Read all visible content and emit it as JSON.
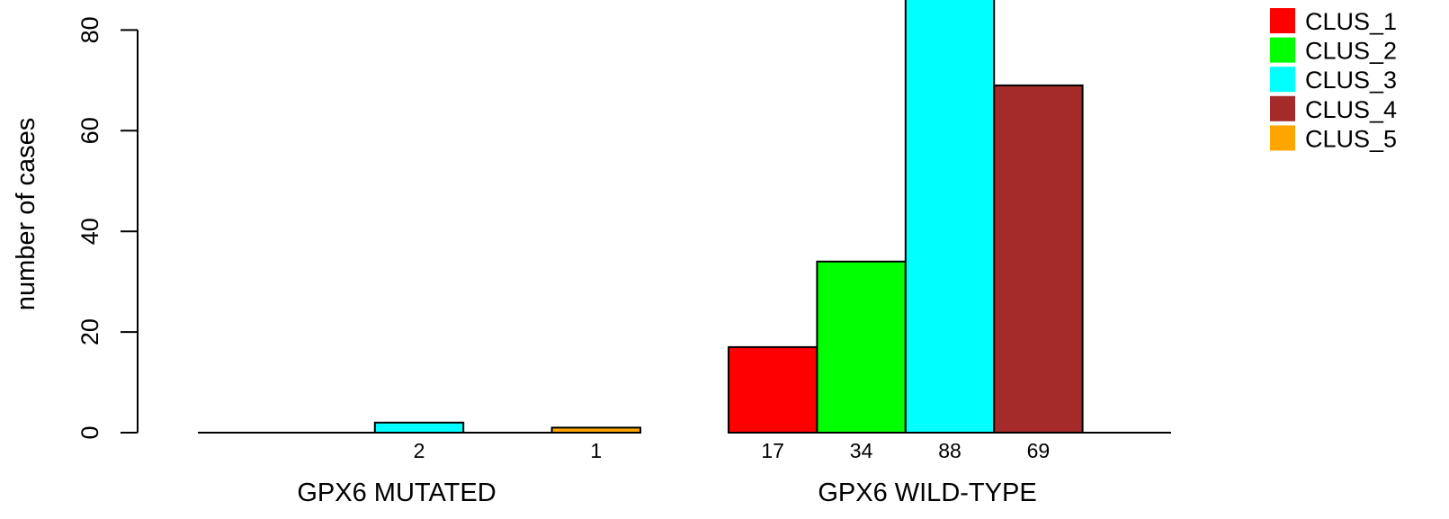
{
  "chart_data": {
    "type": "bar",
    "ylabel": "number of cases",
    "ylim": [
      0,
      85
    ],
    "yticks": [
      0,
      20,
      40,
      60,
      80
    ],
    "groups": [
      {
        "label": "GPX6 MUTATED",
        "bars": [
          {
            "series": "CLUS_1",
            "value": 0,
            "label": ""
          },
          {
            "series": "CLUS_2",
            "value": 0,
            "label": ""
          },
          {
            "series": "CLUS_3",
            "value": 2,
            "label": "2"
          },
          {
            "series": "CLUS_4",
            "value": 0,
            "label": ""
          },
          {
            "series": "CLUS_5",
            "value": 1,
            "label": "1"
          }
        ]
      },
      {
        "label": "GPX6 WILD-TYPE",
        "bars": [
          {
            "series": "CLUS_1",
            "value": 17,
            "label": "17"
          },
          {
            "series": "CLUS_2",
            "value": 34,
            "label": "34"
          },
          {
            "series": "CLUS_3",
            "value": 88,
            "label": "88"
          },
          {
            "series": "CLUS_4",
            "value": 69,
            "label": "69"
          },
          {
            "series": "CLUS_5",
            "value": 0,
            "label": ""
          }
        ]
      }
    ],
    "legend": {
      "position": "top-right",
      "entries": [
        {
          "name": "CLUS_1",
          "color": "#ff0000"
        },
        {
          "name": "CLUS_2",
          "color": "#00ff00"
        },
        {
          "name": "CLUS_3",
          "color": "#00ffff"
        },
        {
          "name": "CLUS_4",
          "color": "#a52a2a"
        },
        {
          "name": "CLUS_5",
          "color": "#ffa500"
        }
      ]
    }
  }
}
